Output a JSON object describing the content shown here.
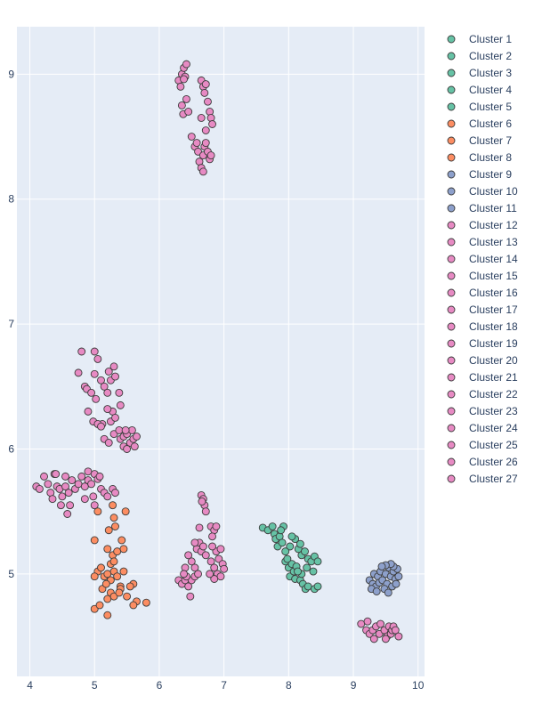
{
  "chart_data": {
    "type": "scatter",
    "title": "",
    "xlabel": "",
    "ylabel": "",
    "xlim": [
      3.8,
      10.1
    ],
    "ylim": [
      4.18,
      9.38
    ],
    "xticks": [
      4,
      5,
      6,
      7,
      8,
      9,
      10
    ],
    "yticks": [
      5,
      6,
      7,
      8,
      9
    ],
    "grid": true,
    "legend_position": "right",
    "plot_bg": "#e5ecf6",
    "series": [
      {
        "name": "Cluster 1",
        "color": "#66c2a5",
        "points": [
          [
            7.6,
            5.37
          ],
          [
            7.68,
            5.35
          ],
          [
            7.75,
            5.38
          ],
          [
            7.78,
            5.32
          ],
          [
            7.8,
            5.28
          ],
          [
            7.83,
            5.22
          ],
          [
            7.86,
            5.3
          ],
          [
            7.9,
            5.25
          ],
          [
            7.92,
            5.38
          ],
          [
            7.88,
            5.35
          ]
        ]
      },
      {
        "name": "Cluster 2",
        "color": "#66c2a5",
        "points": [
          [
            7.95,
            5.1
          ],
          [
            8.0,
            5.05
          ],
          [
            8.02,
            4.98
          ],
          [
            8.05,
            5.08
          ],
          [
            8.08,
            5.02
          ],
          [
            8.1,
            4.96
          ],
          [
            7.98,
            5.12
          ],
          [
            8.12,
            5.06
          ]
        ]
      },
      {
        "name": "Cluster 3",
        "color": "#66c2a5",
        "points": [
          [
            8.15,
            5.2
          ],
          [
            8.2,
            5.15
          ],
          [
            8.25,
            5.18
          ],
          [
            8.3,
            5.12
          ],
          [
            8.35,
            5.1
          ],
          [
            8.4,
            5.14
          ],
          [
            8.45,
            5.1
          ],
          [
            8.28,
            5.05
          ],
          [
            8.38,
            5.02
          ]
        ]
      },
      {
        "name": "Cluster 4",
        "color": "#66c2a5",
        "points": [
          [
            8.18,
            4.95
          ],
          [
            8.22,
            4.92
          ],
          [
            8.26,
            4.88
          ],
          [
            8.3,
            4.9
          ],
          [
            8.4,
            4.88
          ],
          [
            8.45,
            4.9
          ],
          [
            8.2,
            5.0
          ],
          [
            8.14,
            5.02
          ]
        ]
      },
      {
        "name": "Cluster 5",
        "color": "#66c2a5",
        "points": [
          [
            8.1,
            5.28
          ],
          [
            8.02,
            5.22
          ],
          [
            8.18,
            5.24
          ],
          [
            7.95,
            5.18
          ],
          [
            8.05,
            5.3
          ]
        ]
      },
      {
        "name": "Cluster 6",
        "color": "#fc8d62",
        "points": [
          [
            5.0,
            5.27
          ],
          [
            5.05,
            5.5
          ],
          [
            5.22,
            5.35
          ],
          [
            5.3,
            5.45
          ],
          [
            5.32,
            5.38
          ],
          [
            5.42,
            5.27
          ],
          [
            5.2,
            5.2
          ],
          [
            5.28,
            5.15
          ],
          [
            5.35,
            5.18
          ],
          [
            5.45,
            5.2
          ],
          [
            5.25,
            5.08
          ],
          [
            5.3,
            5.1
          ]
        ]
      },
      {
        "name": "Cluster 7",
        "color": "#fc8d62",
        "points": [
          [
            5.05,
            5.02
          ],
          [
            5.1,
            5.05
          ],
          [
            5.15,
            4.98
          ],
          [
            5.2,
            5.0
          ],
          [
            5.25,
            4.95
          ],
          [
            5.3,
            5.02
          ],
          [
            5.35,
            4.98
          ],
          [
            5.4,
            4.9
          ],
          [
            5.45,
            5.02
          ],
          [
            5.48,
            5.5
          ],
          [
            5.28,
            5.55
          ],
          [
            5.0,
            4.98
          ],
          [
            5.12,
            4.88
          ],
          [
            5.18,
            4.92
          ]
        ]
      },
      {
        "name": "Cluster 8",
        "color": "#fc8d62",
        "points": [
          [
            5.0,
            4.72
          ],
          [
            5.08,
            4.75
          ],
          [
            5.2,
            4.8
          ],
          [
            5.25,
            4.85
          ],
          [
            5.3,
            4.82
          ],
          [
            5.4,
            4.88
          ],
          [
            5.5,
            4.82
          ],
          [
            5.6,
            4.92
          ],
          [
            5.65,
            4.78
          ],
          [
            5.8,
            4.77
          ],
          [
            5.2,
            4.67
          ],
          [
            5.6,
            4.75
          ],
          [
            5.38,
            4.85
          ],
          [
            5.55,
            4.9
          ]
        ]
      },
      {
        "name": "Cluster 9",
        "color": "#8da0cb",
        "points": [
          [
            9.25,
            4.95
          ],
          [
            9.3,
            4.92
          ],
          [
            9.32,
            5.0
          ],
          [
            9.35,
            4.9
          ],
          [
            9.38,
            4.98
          ],
          [
            9.42,
            5.02
          ],
          [
            9.28,
            4.88
          ],
          [
            9.36,
            4.86
          ],
          [
            9.4,
            4.93
          ]
        ]
      },
      {
        "name": "Cluster 10",
        "color": "#8da0cb",
        "points": [
          [
            9.45,
            4.95
          ],
          [
            9.5,
            5.0
          ],
          [
            9.52,
            4.92
          ],
          [
            9.55,
            5.05
          ],
          [
            9.58,
            4.98
          ],
          [
            9.6,
            4.9
          ],
          [
            9.48,
            4.88
          ],
          [
            9.54,
            4.85
          ],
          [
            9.62,
            5.02
          ]
        ]
      },
      {
        "name": "Cluster 11",
        "color": "#8da0cb",
        "points": [
          [
            9.65,
            4.96
          ],
          [
            9.68,
            5.04
          ],
          [
            9.7,
            4.98
          ],
          [
            9.62,
            5.06
          ],
          [
            9.58,
            5.08
          ],
          [
            9.5,
            5.07
          ],
          [
            9.44,
            5.06
          ],
          [
            9.66,
            4.92
          ]
        ]
      },
      {
        "name": "Cluster 12",
        "color": "#e78ac3",
        "points": [
          [
            6.3,
            8.95
          ],
          [
            6.33,
            8.9
          ],
          [
            6.35,
            9.0
          ],
          [
            6.38,
            9.05
          ],
          [
            6.4,
            8.98
          ],
          [
            6.35,
            8.75
          ],
          [
            6.37,
            8.68
          ],
          [
            6.42,
            8.8
          ],
          [
            6.45,
            8.7
          ],
          [
            6.38,
            8.96
          ],
          [
            6.42,
            9.08
          ]
        ]
      },
      {
        "name": "Cluster 13",
        "color": "#e78ac3",
        "points": [
          [
            6.65,
            8.95
          ],
          [
            6.68,
            8.9
          ],
          [
            6.7,
            8.85
          ],
          [
            6.72,
            8.92
          ],
          [
            6.75,
            8.78
          ],
          [
            6.78,
            8.7
          ],
          [
            6.8,
            8.65
          ],
          [
            6.82,
            8.6
          ],
          [
            6.72,
            8.55
          ],
          [
            6.65,
            8.65
          ]
        ]
      },
      {
        "name": "Cluster 14",
        "color": "#e78ac3",
        "points": [
          [
            6.5,
            8.5
          ],
          [
            6.55,
            8.42
          ],
          [
            6.6,
            8.38
          ],
          [
            6.62,
            8.3
          ],
          [
            6.65,
            8.25
          ],
          [
            6.68,
            8.35
          ],
          [
            6.7,
            8.42
          ],
          [
            6.72,
            8.45
          ],
          [
            6.75,
            8.38
          ],
          [
            6.78,
            8.32
          ],
          [
            6.8,
            8.35
          ],
          [
            6.68,
            8.22
          ],
          [
            6.58,
            8.45
          ]
        ]
      },
      {
        "name": "Cluster 15",
        "color": "#e78ac3",
        "points": [
          [
            4.8,
            6.78
          ],
          [
            4.85,
            6.5
          ],
          [
            4.88,
            6.48
          ],
          [
            4.95,
            6.45
          ],
          [
            5.0,
            6.6
          ],
          [
            5.05,
            6.72
          ],
          [
            5.1,
            6.55
          ],
          [
            5.02,
            6.4
          ],
          [
            4.9,
            6.3
          ],
          [
            5.0,
            6.78
          ],
          [
            4.75,
            6.61
          ]
        ]
      },
      {
        "name": "Cluster 16",
        "color": "#e78ac3",
        "points": [
          [
            5.15,
            6.5
          ],
          [
            5.2,
            6.45
          ],
          [
            5.22,
            6.62
          ],
          [
            5.25,
            6.55
          ],
          [
            5.3,
            6.66
          ],
          [
            5.32,
            6.58
          ],
          [
            5.38,
            6.45
          ],
          [
            5.4,
            6.35
          ],
          [
            5.28,
            6.3
          ],
          [
            5.2,
            6.32
          ],
          [
            5.12,
            6.2
          ]
        ]
      },
      {
        "name": "Cluster 17",
        "color": "#e78ac3",
        "points": [
          [
            4.98,
            6.22
          ],
          [
            5.05,
            6.2
          ],
          [
            5.1,
            6.18
          ],
          [
            5.15,
            6.08
          ],
          [
            5.22,
            6.05
          ],
          [
            5.3,
            6.12
          ],
          [
            5.38,
            6.15
          ],
          [
            5.25,
            6.22
          ],
          [
            5.4,
            6.08
          ],
          [
            5.45,
            6.02
          ],
          [
            5.32,
            6.25
          ]
        ]
      },
      {
        "name": "Cluster 18",
        "color": "#e78ac3",
        "points": [
          [
            5.45,
            6.1
          ],
          [
            5.5,
            6.12
          ],
          [
            5.55,
            6.05
          ],
          [
            5.58,
            6.15
          ],
          [
            5.6,
            6.08
          ],
          [
            5.62,
            6.02
          ],
          [
            5.65,
            6.1
          ],
          [
            5.5,
            6.0
          ],
          [
            5.48,
            6.15
          ]
        ]
      },
      {
        "name": "Cluster 19",
        "color": "#e78ac3",
        "points": [
          [
            4.1,
            5.7
          ],
          [
            4.15,
            5.68
          ],
          [
            4.22,
            5.78
          ],
          [
            4.28,
            5.72
          ],
          [
            4.32,
            5.65
          ],
          [
            4.38,
            5.8
          ],
          [
            4.42,
            5.7
          ],
          [
            4.46,
            5.68
          ],
          [
            4.5,
            5.62
          ],
          [
            4.55,
            5.78
          ],
          [
            4.35,
            5.6
          ]
        ]
      },
      {
        "name": "Cluster 20",
        "color": "#e78ac3",
        "points": [
          [
            4.55,
            5.7
          ],
          [
            4.6,
            5.65
          ],
          [
            4.65,
            5.75
          ],
          [
            4.7,
            5.68
          ],
          [
            4.75,
            5.72
          ],
          [
            4.8,
            5.78
          ],
          [
            4.85,
            5.7
          ],
          [
            4.9,
            5.75
          ],
          [
            4.62,
            5.55
          ],
          [
            4.58,
            5.48
          ],
          [
            4.48,
            5.55
          ],
          [
            4.4,
            5.8
          ]
        ]
      },
      {
        "name": "Cluster 21",
        "color": "#e78ac3",
        "points": [
          [
            4.9,
            5.82
          ],
          [
            4.95,
            5.72
          ],
          [
            5.0,
            5.8
          ],
          [
            5.05,
            5.76
          ],
          [
            5.1,
            5.68
          ],
          [
            5.15,
            5.65
          ],
          [
            5.2,
            5.62
          ],
          [
            5.28,
            5.68
          ],
          [
            5.32,
            5.65
          ],
          [
            4.98,
            5.62
          ],
          [
            5.0,
            5.55
          ],
          [
            5.08,
            5.78
          ],
          [
            4.85,
            5.6
          ]
        ]
      },
      {
        "name": "Cluster 22",
        "color": "#e78ac3",
        "points": [
          [
            6.65,
            5.63
          ],
          [
            6.68,
            5.6
          ],
          [
            6.7,
            5.55
          ],
          [
            6.72,
            5.5
          ],
          [
            6.66,
            5.58
          ],
          [
            6.8,
            5.38
          ],
          [
            6.85,
            5.35
          ],
          [
            6.82,
            5.3
          ],
          [
            6.88,
            5.38
          ],
          [
            6.62,
            5.37
          ]
        ]
      },
      {
        "name": "Cluster 23",
        "color": "#e78ac3",
        "points": [
          [
            6.5,
            5.1
          ],
          [
            6.55,
            5.05
          ],
          [
            6.58,
            5.2
          ],
          [
            6.62,
            5.25
          ],
          [
            6.65,
            5.18
          ],
          [
            6.68,
            5.22
          ],
          [
            6.72,
            5.15
          ],
          [
            6.45,
            5.15
          ],
          [
            6.4,
            5.05
          ],
          [
            6.55,
            5.25
          ]
        ]
      },
      {
        "name": "Cluster 24",
        "color": "#e78ac3",
        "points": [
          [
            6.3,
            4.95
          ],
          [
            6.35,
            4.92
          ],
          [
            6.4,
            4.95
          ],
          [
            6.45,
            4.9
          ],
          [
            6.5,
            4.95
          ],
          [
            6.55,
            4.98
          ],
          [
            6.48,
            4.82
          ],
          [
            6.42,
            4.98
          ],
          [
            6.6,
            5.0
          ],
          [
            6.38,
            5.0
          ]
        ]
      },
      {
        "name": "Cluster 25",
        "color": "#e78ac3",
        "points": [
          [
            6.8,
            5.1
          ],
          [
            6.85,
            5.05
          ],
          [
            6.88,
            5.18
          ],
          [
            6.9,
            5.0
          ],
          [
            6.92,
            5.12
          ],
          [
            6.95,
            4.98
          ],
          [
            6.98,
            5.08
          ],
          [
            7.0,
            5.04
          ],
          [
            6.85,
            4.96
          ],
          [
            6.95,
            5.2
          ],
          [
            6.82,
            5.22
          ],
          [
            6.78,
            5.0
          ]
        ]
      },
      {
        "name": "Cluster 26",
        "color": "#e78ac3",
        "points": [
          [
            9.12,
            4.6
          ],
          [
            9.2,
            4.55
          ],
          [
            9.25,
            4.52
          ],
          [
            9.3,
            4.55
          ],
          [
            9.32,
            4.48
          ],
          [
            9.35,
            4.58
          ],
          [
            9.4,
            4.52
          ],
          [
            9.42,
            4.6
          ],
          [
            9.22,
            4.62
          ]
        ]
      },
      {
        "name": "Cluster 27",
        "color": "#e78ac3",
        "points": [
          [
            9.48,
            4.55
          ],
          [
            9.52,
            4.5
          ],
          [
            9.55,
            4.58
          ],
          [
            9.58,
            4.52
          ],
          [
            9.6,
            4.55
          ],
          [
            9.62,
            4.58
          ],
          [
            9.65,
            4.55
          ],
          [
            9.7,
            4.5
          ],
          [
            9.5,
            4.48
          ]
        ]
      }
    ]
  }
}
